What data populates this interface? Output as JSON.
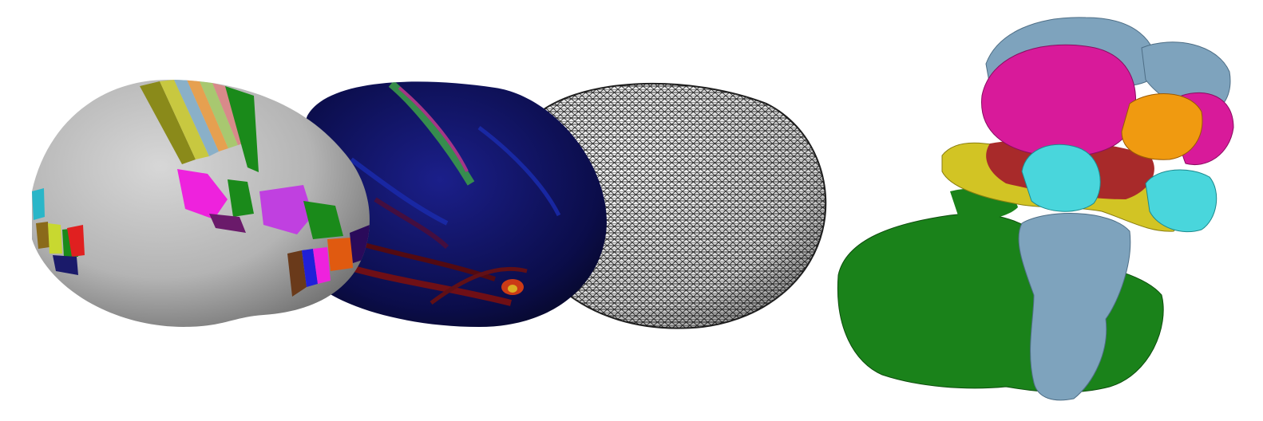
{
  "figure": {
    "panels": [
      {
        "id": "parcellated-surface",
        "kind": "inflated cortical surface with parcellation labels"
      },
      {
        "id": "curvature-surface",
        "kind": "inflated cortical surface with color-mapped feature"
      },
      {
        "id": "mesh-surface",
        "kind": "inflated cortical surface triangle mesh wireframe"
      },
      {
        "id": "subcortical-structures",
        "kind": "3D rendering of segmented structures"
      }
    ],
    "colors": {
      "background": "#ffffff",
      "surface_gray": "#b8b8b8",
      "feature_blue": "#0b0d4a",
      "green": "#1a8a1a",
      "light_blue": "#7ea3bd",
      "magenta": "#d81a9a",
      "orange": "#f09a10",
      "cyan": "#49d6dc",
      "yellow": "#d2c424",
      "dark_red": "#a82a2a"
    }
  }
}
